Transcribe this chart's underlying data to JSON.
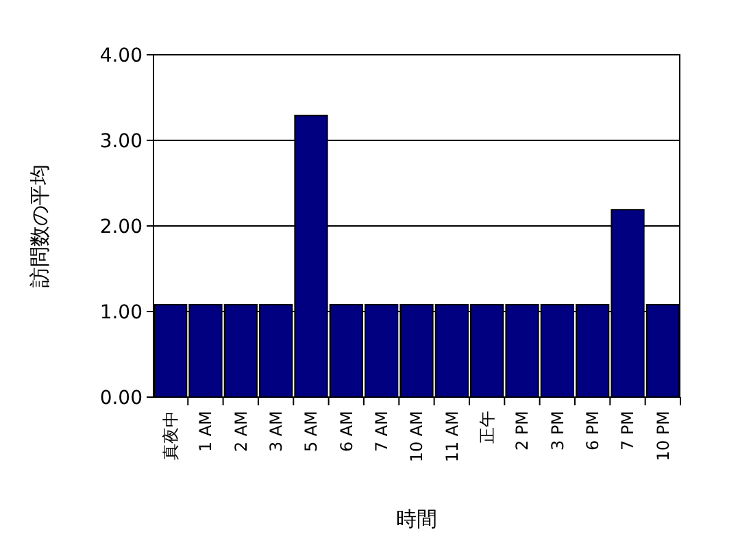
{
  "chart_data": {
    "type": "bar",
    "xlabel": "時間",
    "ylabel": "訪問数の平均",
    "categories": [
      "真夜中",
      "1 AM",
      "2 AM",
      "3 AM",
      "5 AM",
      "6 AM",
      "7 AM",
      "10 AM",
      "11 AM",
      "正午",
      "2 PM",
      "3 PM",
      "6 PM",
      "7 PM",
      "10 PM"
    ],
    "values": [
      1.08,
      1.08,
      1.08,
      1.08,
      3.29,
      1.08,
      1.08,
      1.08,
      1.08,
      1.08,
      1.08,
      1.08,
      1.08,
      2.19,
      1.08
    ],
    "color": "#000080",
    "ylim": [
      0,
      4
    ],
    "yticks": [
      {
        "value": 0,
        "label": "0.00"
      },
      {
        "value": 1,
        "label": "1.00"
      },
      {
        "value": 2,
        "label": "2.00"
      },
      {
        "value": 3,
        "label": "3.00"
      },
      {
        "value": 4,
        "label": "4.00"
      }
    ],
    "grid": "y"
  }
}
